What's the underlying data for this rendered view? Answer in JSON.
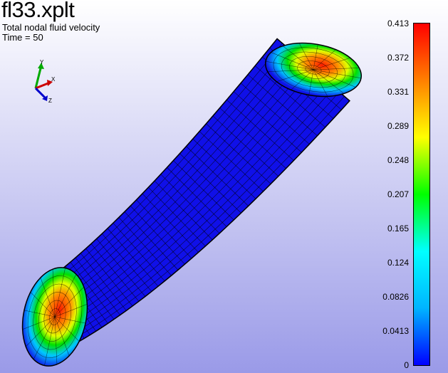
{
  "plot": {
    "filename": "fl33.xplt",
    "variable": "Total nodal fluid velocity",
    "time_label": "Time = 50"
  },
  "triad": {
    "x_label": "X",
    "y_label": "Y",
    "z_label": "Z",
    "colors": {
      "x": "#cc0000",
      "y": "#00aa00",
      "z": "#0000cc"
    }
  },
  "colormap": {
    "min": 0,
    "max": 0.413,
    "ticks": [
      "0.413",
      "0.372",
      "0.331",
      "0.289",
      "0.248",
      "0.207",
      "0.165",
      "0.124",
      "0.0826",
      "0.0413",
      "0"
    ],
    "colors": [
      "#0000ff",
      "#00b4ff",
      "#00ffff",
      "#00ff00",
      "#ffff00",
      "#ff8000",
      "#ff0000"
    ]
  },
  "mesh": {
    "surface_color": "#1010e8",
    "grid_color": "#000000"
  }
}
